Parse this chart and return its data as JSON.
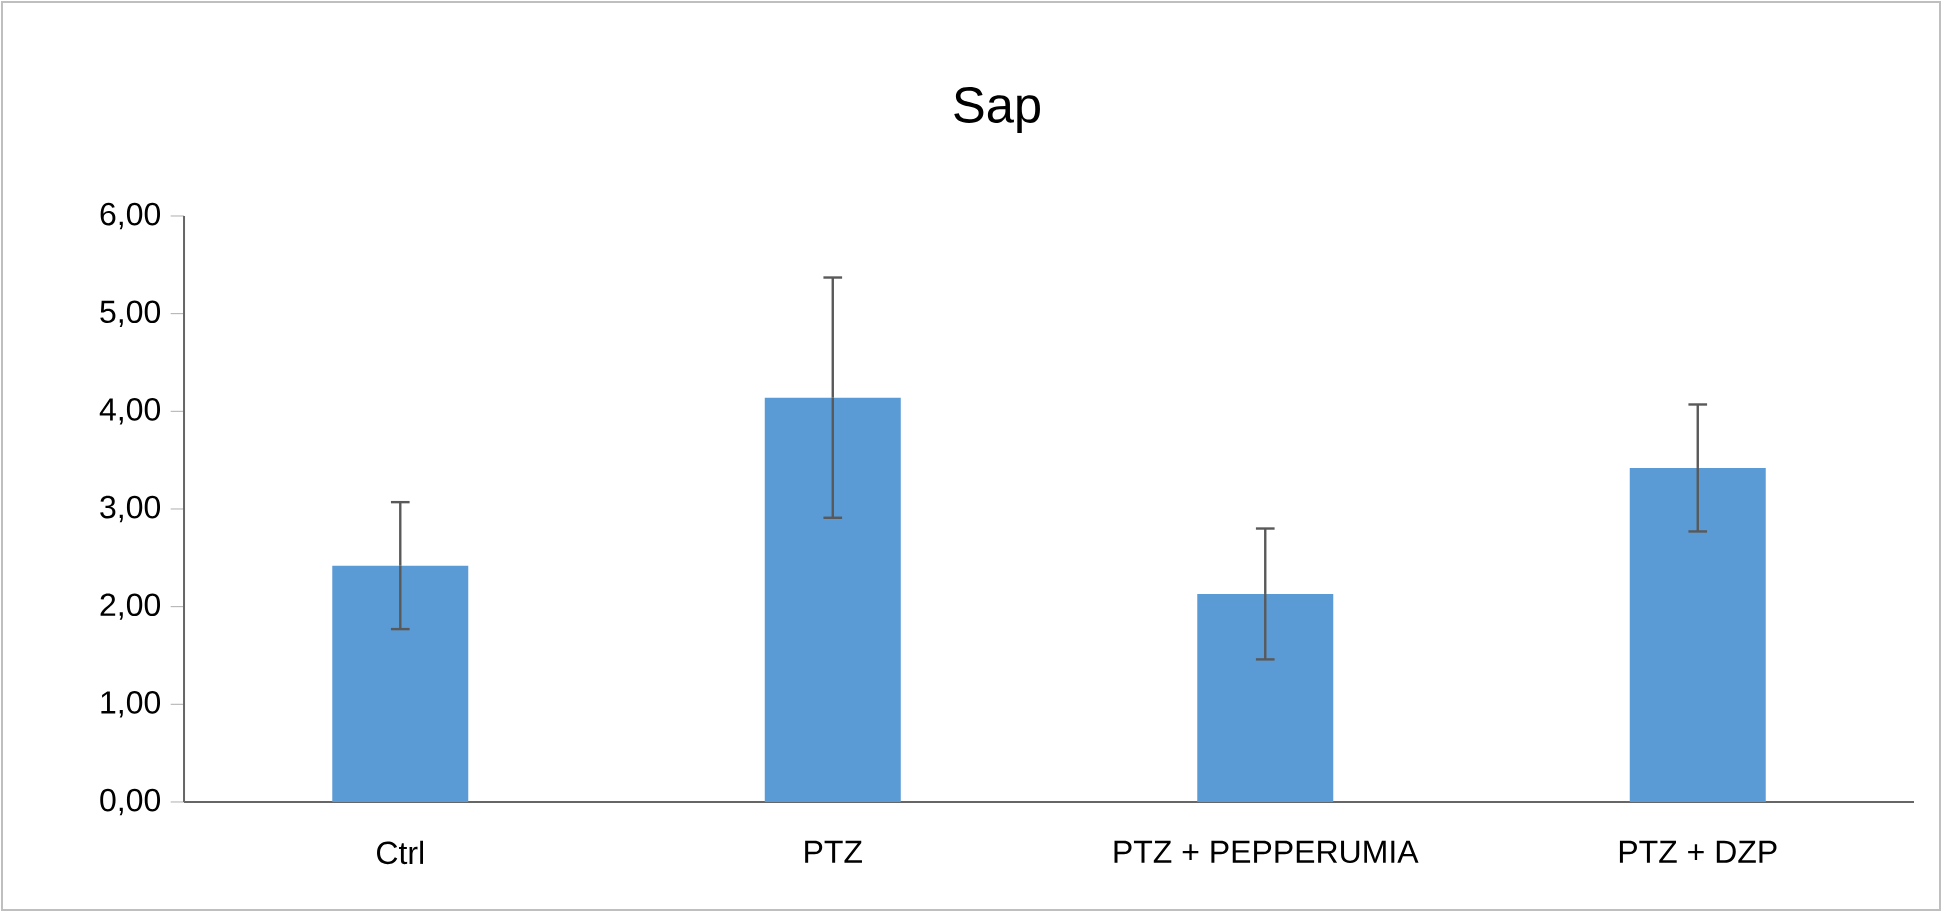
{
  "chart_data": {
    "type": "bar",
    "title": "Sap",
    "categories": [
      "Ctrl",
      "PTZ",
      "PTZ + PEPPERUMIA",
      "PTZ + DZP"
    ],
    "values": [
      2.42,
      4.14,
      2.13,
      3.42
    ],
    "errors": [
      0.65,
      1.23,
      0.67,
      0.65
    ],
    "color": "#5b9bd5",
    "ylim": [
      0,
      6
    ],
    "yticks": [
      {
        "value": 0,
        "label": "0,00"
      },
      {
        "value": 1,
        "label": "1,00"
      },
      {
        "value": 2,
        "label": "2,00"
      },
      {
        "value": 3,
        "label": "3,00"
      },
      {
        "value": 4,
        "label": "4,00"
      },
      {
        "value": 5,
        "label": "5,00"
      },
      {
        "value": 6,
        "label": "6,00"
      }
    ],
    "grid": false
  }
}
